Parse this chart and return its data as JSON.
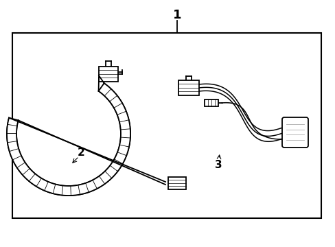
{
  "bg_color": "#ffffff",
  "line_color": "#000000",
  "gray_color": "#aaaaaa",
  "fig_width": 4.89,
  "fig_height": 3.6,
  "dpi": 100,
  "title_number": "1",
  "label_2": "2",
  "label_3": "3"
}
